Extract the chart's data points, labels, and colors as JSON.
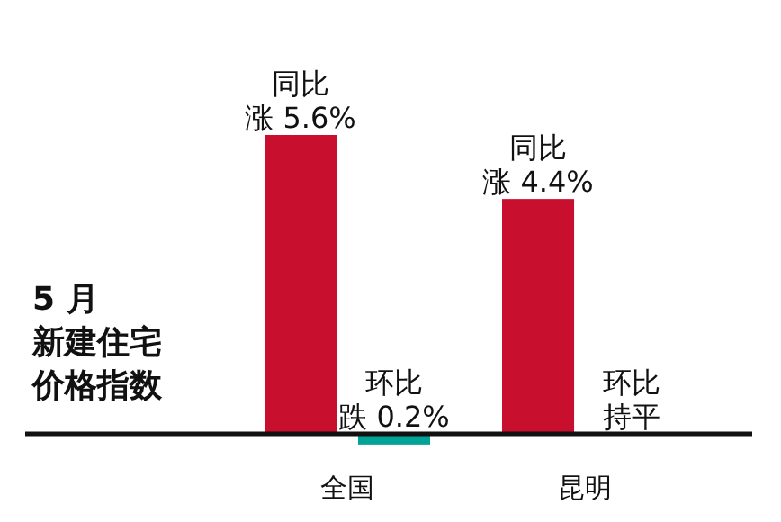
{
  "chart_data": {
    "type": "bar",
    "title": "5 月",
    "subtitle": "新建住宅价格指数",
    "categories": [
      "全国",
      "昆明"
    ],
    "series": [
      {
        "name": "同比",
        "color": "#c8102e",
        "values": [
          5.6,
          4.4
        ],
        "value_labels": [
          "涨 5.6%",
          "涨 4.4%"
        ]
      },
      {
        "name": "环比",
        "color": "#00a396",
        "values": [
          -0.2,
          0
        ],
        "value_labels": [
          "跌 0.2%",
          "持平"
        ]
      }
    ]
  }
}
